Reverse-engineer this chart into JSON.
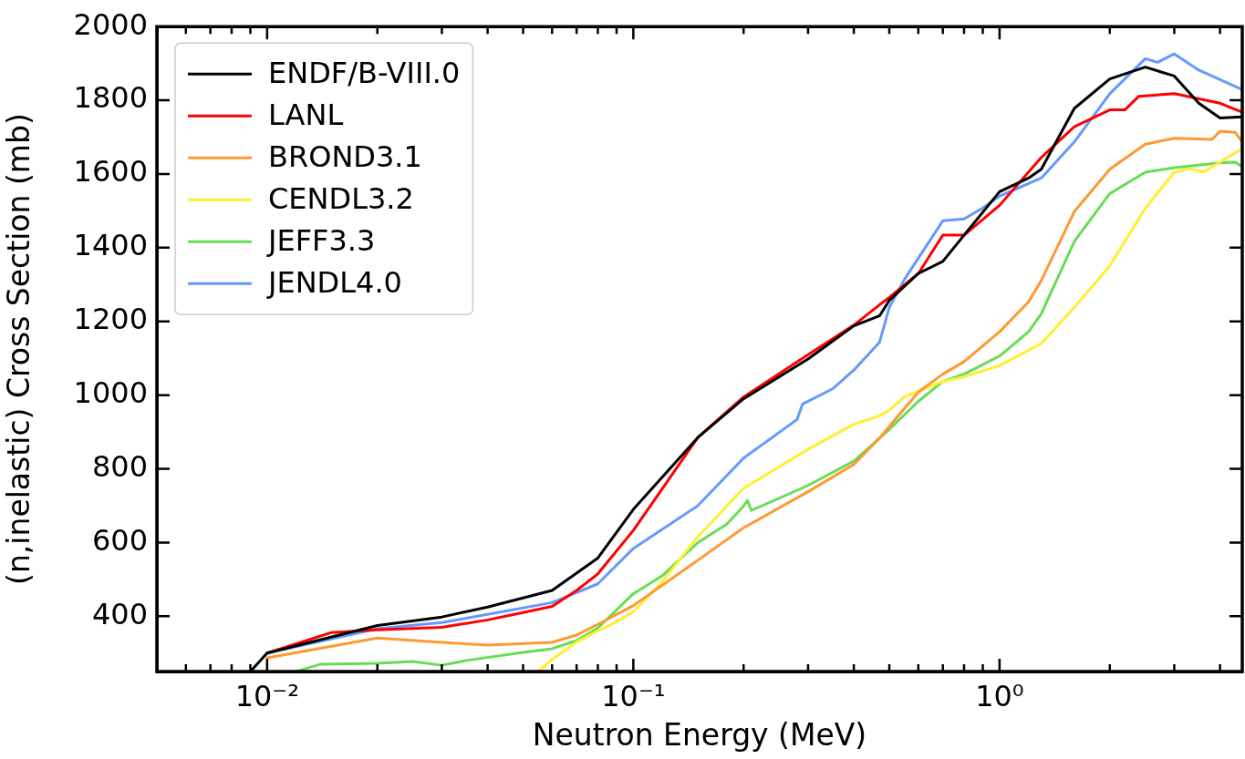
{
  "chart_data": {
    "type": "line",
    "xlabel": "Neutron Energy (MeV)",
    "ylabel": "(n,inelastic) Cross Section (mb)",
    "log": "x",
    "grid": false,
    "legend": "top left",
    "marker": "none",
    "line_style": "solid",
    "xlim": [
      0.005,
      4.6
    ],
    "ylim": [
      250,
      2000
    ],
    "xticks": [
      {
        "value": 0.006,
        "label": null
      },
      {
        "value": 0.007,
        "label": null
      },
      {
        "value": 0.008,
        "label": null
      },
      {
        "value": 0.009,
        "label": null
      },
      {
        "value": 0.01,
        "label": "10⁻²"
      },
      {
        "value": 0.02,
        "label": null
      },
      {
        "value": 0.03,
        "label": null
      },
      {
        "value": 0.04,
        "label": null
      },
      {
        "value": 0.05,
        "label": null
      },
      {
        "value": 0.06,
        "label": null
      },
      {
        "value": 0.07,
        "label": null
      },
      {
        "value": 0.08,
        "label": null
      },
      {
        "value": 0.09,
        "label": null
      },
      {
        "value": 0.1,
        "label": "10⁻¹"
      },
      {
        "value": 0.2,
        "label": null
      },
      {
        "value": 0.3,
        "label": null
      },
      {
        "value": 0.4,
        "label": null
      },
      {
        "value": 0.5,
        "label": null
      },
      {
        "value": 0.6,
        "label": null
      },
      {
        "value": 0.7,
        "label": null
      },
      {
        "value": 0.8,
        "label": null
      },
      {
        "value": 0.9,
        "label": null
      },
      {
        "value": 1,
        "label": "10⁰"
      },
      {
        "value": 2,
        "label": null
      },
      {
        "value": 3,
        "label": null
      },
      {
        "value": 4,
        "label": null
      }
    ],
    "yticks": [
      400,
      600,
      800,
      1000,
      1200,
      1400,
      1600,
      1800,
      2000
    ],
    "series": [
      {
        "name": "ENDF/B-VIII.0",
        "color": "#000000",
        "x": [
          0.009,
          0.01,
          0.02,
          0.03,
          0.04,
          0.06,
          0.08,
          0.1,
          0.15,
          0.2,
          0.3,
          0.4,
          0.47,
          0.5,
          0.6,
          0.7,
          0.8,
          1.0,
          1.2,
          1.3,
          1.6,
          2,
          2.5,
          3,
          3.5,
          4,
          4.6
        ],
        "values": [
          250,
          300,
          375,
          398,
          425,
          470,
          558,
          690,
          885,
          990,
          1098,
          1188,
          1215,
          1257,
          1330,
          1363,
          1434,
          1552,
          1589,
          1613,
          1778,
          1858,
          1890,
          1866,
          1792,
          1752,
          1755
        ]
      },
      {
        "name": "LANL",
        "color": "#ff0000",
        "x": [
          0.01,
          0.015,
          0.02,
          0.03,
          0.04,
          0.05,
          0.06,
          0.07,
          0.08,
          0.1,
          0.15,
          0.2,
          0.3,
          0.4,
          0.47,
          0.5,
          0.6,
          0.7,
          0.8,
          1.0,
          1.3,
          1.6,
          2,
          2.2,
          2.4,
          3,
          4,
          4.6
        ],
        "values": [
          300,
          356,
          363,
          370,
          390,
          410,
          427,
          470,
          515,
          633,
          885,
          995,
          1110,
          1190,
          1245,
          1265,
          1330,
          1434,
          1434,
          1515,
          1645,
          1728,
          1774,
          1774,
          1811,
          1818,
          1792,
          1768
        ]
      },
      {
        "name": "BROND3.1",
        "color": "#ff9933",
        "x": [
          0.01,
          0.02,
          0.03,
          0.04,
          0.06,
          0.07,
          0.08,
          0.1,
          0.15,
          0.2,
          0.3,
          0.4,
          0.47,
          0.5,
          0.6,
          0.7,
          0.8,
          1.0,
          1.2,
          1.3,
          1.6,
          2,
          2.5,
          3,
          3.8,
          4,
          4.4,
          4.6
        ],
        "values": [
          287,
          341,
          329,
          322,
          329,
          349,
          378,
          429,
          552,
          640,
          738,
          812,
          883,
          915,
          1008,
          1057,
          1091,
          1172,
          1253,
          1311,
          1498,
          1613,
          1681,
          1697,
          1694,
          1716,
          1713,
          1687
        ]
      },
      {
        "name": "CENDL3.2",
        "color": "#ffee33",
        "x": [
          0.055,
          0.06,
          0.07,
          0.08,
          0.09,
          0.1,
          0.12,
          0.15,
          0.2,
          0.3,
          0.4,
          0.47,
          0.5,
          0.55,
          0.7,
          0.8,
          1.0,
          1.3,
          1.6,
          2,
          2.5,
          3,
          3.3,
          3.6,
          4.6
        ],
        "values": [
          250,
          283,
          330,
          360,
          385,
          412,
          494,
          616,
          747,
          853,
          921,
          944,
          959,
          996,
          1037,
          1050,
          1080,
          1140,
          1238,
          1351,
          1507,
          1605,
          1615,
          1605,
          1669
        ]
      },
      {
        "name": "JEFF3.3",
        "color": "#66dd55",
        "x": [
          0.012,
          0.014,
          0.02,
          0.025,
          0.03,
          0.035,
          0.05,
          0.06,
          0.07,
          0.08,
          0.1,
          0.12,
          0.15,
          0.18,
          0.2,
          0.205,
          0.21,
          0.3,
          0.4,
          0.47,
          0.5,
          0.6,
          0.7,
          0.8,
          1.0,
          1.2,
          1.3,
          1.6,
          2,
          2.5,
          3,
          4,
          4.4,
          4.6
        ],
        "values": [
          250,
          270,
          272,
          277,
          267,
          280,
          302,
          312,
          334,
          368,
          461,
          510,
          600,
          650,
          699,
          714,
          687,
          755,
          821,
          883,
          907,
          983,
          1037,
          1057,
          1106,
          1172,
          1221,
          1417,
          1547,
          1605,
          1617,
          1630,
          1632,
          1620
        ]
      },
      {
        "name": "JENDL4.0",
        "color": "#6699ff",
        "x": [
          0.01,
          0.02,
          0.03,
          0.04,
          0.06,
          0.08,
          0.1,
          0.15,
          0.2,
          0.28,
          0.29,
          0.35,
          0.4,
          0.47,
          0.5,
          0.55,
          0.7,
          0.8,
          0.9,
          1.0,
          1.3,
          1.6,
          2,
          2.5,
          2.7,
          3,
          3.5,
          4.6
        ],
        "values": [
          300,
          366,
          383,
          405,
          437,
          488,
          584,
          700,
          829,
          934,
          976,
          1017,
          1068,
          1143,
          1238,
          1314,
          1473,
          1478,
          1508,
          1540,
          1589,
          1687,
          1818,
          1913,
          1903,
          1926,
          1882,
          1829
        ]
      }
    ]
  }
}
